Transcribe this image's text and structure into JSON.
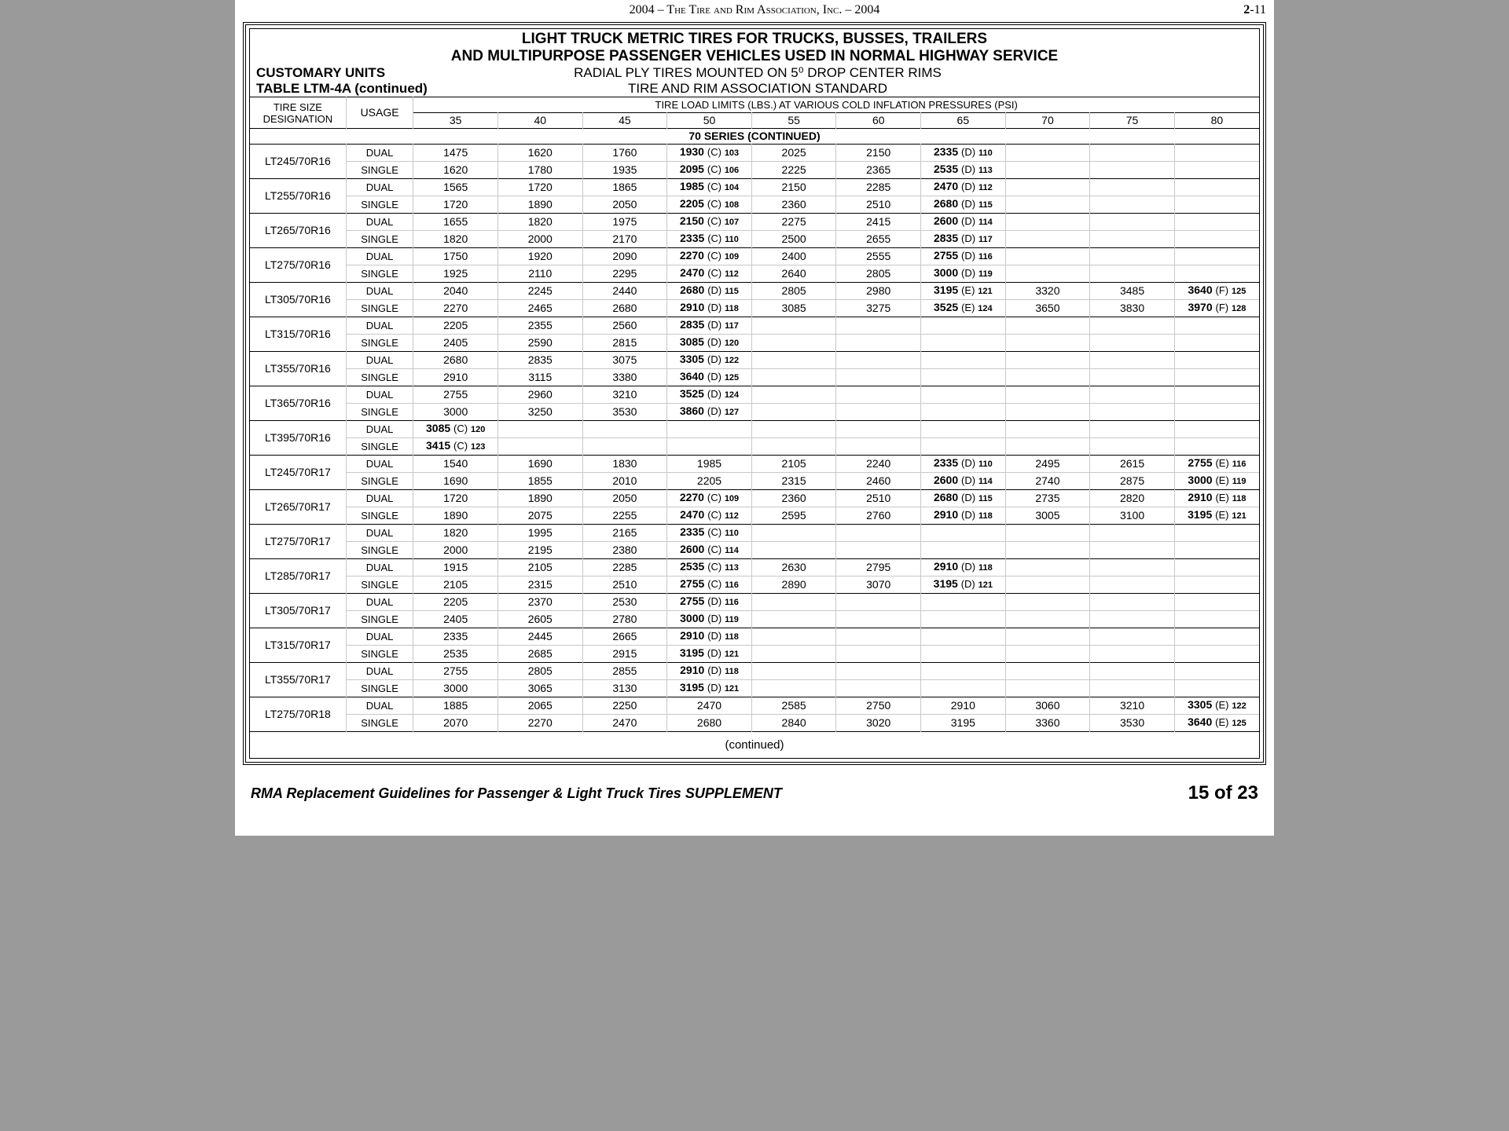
{
  "header": {
    "center": "2004 – The Tire and Rim Association, Inc. – 2004",
    "pagePrefix": "2",
    "pageNum": "-11"
  },
  "title1": "LIGHT TRUCK METRIC TIRES FOR TRUCKS, BUSSES, TRAILERS",
  "title2": "AND MULTIPURPOSE PASSENGER VEHICLES USED IN NORMAL HIGHWAY SERVICE",
  "sub1_left": "CUSTOMARY UNITS",
  "sub1_center": "RADIAL PLY TIRES MOUNTED ON 5⁰ DROP CENTER RIMS",
  "sub2_left": "TABLE LTM-4A (continued)",
  "sub2_center": "TIRE AND RIM ASSOCIATION STANDARD",
  "th_tiresize1": "TIRE SIZE",
  "th_tiresize2": "DESIGNATION",
  "th_usage": "USAGE",
  "th_loadlimits": "TIRE LOAD LIMITS (LBS.) AT VARIOUS COLD INFLATION PRESSURES (PSI)",
  "psi": [
    "35",
    "40",
    "45",
    "50",
    "55",
    "60",
    "65",
    "70",
    "75",
    "80"
  ],
  "section": "70 SERIES (CONTINUED)",
  "rows": [
    {
      "ts": "LT245/70R16",
      "u": "DUAL",
      "c": [
        {
          "v": "1475"
        },
        {
          "v": "1620"
        },
        {
          "v": "1760"
        },
        {
          "b": "1930",
          "a": "(C)",
          "i": "103"
        },
        {
          "v": "2025"
        },
        {
          "v": "2150"
        },
        {
          "b": "2335",
          "a": "(D)",
          "i": "110"
        },
        {},
        {},
        {}
      ]
    },
    {
      "u": "SINGLE",
      "c": [
        {
          "v": "1620"
        },
        {
          "v": "1780"
        },
        {
          "v": "1935"
        },
        {
          "b": "2095",
          "a": "(C)",
          "i": "106"
        },
        {
          "v": "2225"
        },
        {
          "v": "2365"
        },
        {
          "b": "2535",
          "a": "(D)",
          "i": "113"
        },
        {},
        {},
        {}
      ]
    },
    {
      "ts": "LT255/70R16",
      "u": "DUAL",
      "c": [
        {
          "v": "1565"
        },
        {
          "v": "1720"
        },
        {
          "v": "1865"
        },
        {
          "b": "1985",
          "a": "(C)",
          "i": "104"
        },
        {
          "v": "2150"
        },
        {
          "v": "2285"
        },
        {
          "b": "2470",
          "a": "(D)",
          "i": "112"
        },
        {},
        {},
        {}
      ]
    },
    {
      "u": "SINGLE",
      "c": [
        {
          "v": "1720"
        },
        {
          "v": "1890"
        },
        {
          "v": "2050"
        },
        {
          "b": "2205",
          "a": "(C)",
          "i": "108"
        },
        {
          "v": "2360"
        },
        {
          "v": "2510"
        },
        {
          "b": "2680",
          "a": "(D)",
          "i": "115"
        },
        {},
        {},
        {}
      ]
    },
    {
      "ts": "LT265/70R16",
      "u": "DUAL",
      "c": [
        {
          "v": "1655"
        },
        {
          "v": "1820"
        },
        {
          "v": "1975"
        },
        {
          "b": "2150",
          "a": "(C)",
          "i": "107"
        },
        {
          "v": "2275"
        },
        {
          "v": "2415"
        },
        {
          "b": "2600",
          "a": "(D)",
          "i": "114"
        },
        {},
        {},
        {}
      ]
    },
    {
      "u": "SINGLE",
      "c": [
        {
          "v": "1820"
        },
        {
          "v": "2000"
        },
        {
          "v": "2170"
        },
        {
          "b": "2335",
          "a": "(C)",
          "i": "110"
        },
        {
          "v": "2500"
        },
        {
          "v": "2655"
        },
        {
          "b": "2835",
          "a": "(D)",
          "i": "117"
        },
        {},
        {},
        {}
      ]
    },
    {
      "ts": "LT275/70R16",
      "u": "DUAL",
      "c": [
        {
          "v": "1750"
        },
        {
          "v": "1920"
        },
        {
          "v": "2090"
        },
        {
          "b": "2270",
          "a": "(C)",
          "i": "109"
        },
        {
          "v": "2400"
        },
        {
          "v": "2555"
        },
        {
          "b": "2755",
          "a": "(D)",
          "i": "116"
        },
        {},
        {},
        {}
      ]
    },
    {
      "u": "SINGLE",
      "c": [
        {
          "v": "1925"
        },
        {
          "v": "2110"
        },
        {
          "v": "2295"
        },
        {
          "b": "2470",
          "a": "(C)",
          "i": "112"
        },
        {
          "v": "2640"
        },
        {
          "v": "2805"
        },
        {
          "b": "3000",
          "a": "(D)",
          "i": "119"
        },
        {},
        {},
        {}
      ]
    },
    {
      "ts": "LT305/70R16",
      "u": "DUAL",
      "c": [
        {
          "v": "2040"
        },
        {
          "v": "2245"
        },
        {
          "v": "2440"
        },
        {
          "b": "2680",
          "a": "(D)",
          "i": "115"
        },
        {
          "v": "2805"
        },
        {
          "v": "2980"
        },
        {
          "b": "3195",
          "a": "(E)",
          "i": "121"
        },
        {
          "v": "3320"
        },
        {
          "v": "3485"
        },
        {
          "b": "3640",
          "a": "(F)",
          "i": "125"
        }
      ]
    },
    {
      "u": "SINGLE",
      "c": [
        {
          "v": "2270"
        },
        {
          "v": "2465"
        },
        {
          "v": "2680"
        },
        {
          "b": "2910",
          "a": "(D)",
          "i": "118"
        },
        {
          "v": "3085"
        },
        {
          "v": "3275"
        },
        {
          "b": "3525",
          "a": "(E)",
          "i": "124"
        },
        {
          "v": "3650"
        },
        {
          "v": "3830"
        },
        {
          "b": "3970",
          "a": "(F)",
          "i": "128"
        }
      ]
    },
    {
      "ts": "LT315/70R16",
      "u": "DUAL",
      "c": [
        {
          "v": "2205"
        },
        {
          "v": "2355"
        },
        {
          "v": "2560"
        },
        {
          "b": "2835",
          "a": "(D)",
          "i": "117"
        },
        {},
        {},
        {},
        {},
        {},
        {}
      ]
    },
    {
      "u": "SINGLE",
      "c": [
        {
          "v": "2405"
        },
        {
          "v": "2590"
        },
        {
          "v": "2815"
        },
        {
          "b": "3085",
          "a": "(D)",
          "i": "120"
        },
        {},
        {},
        {},
        {},
        {},
        {}
      ]
    },
    {
      "ts": "LT355/70R16",
      "u": "DUAL",
      "c": [
        {
          "v": "2680"
        },
        {
          "v": "2835"
        },
        {
          "v": "3075"
        },
        {
          "b": "3305",
          "a": "(D)",
          "i": "122"
        },
        {},
        {},
        {},
        {},
        {},
        {}
      ]
    },
    {
      "u": "SINGLE",
      "c": [
        {
          "v": "2910"
        },
        {
          "v": "3115"
        },
        {
          "v": "3380"
        },
        {
          "b": "3640",
          "a": "(D)",
          "i": "125"
        },
        {},
        {},
        {},
        {},
        {},
        {}
      ]
    },
    {
      "ts": "LT365/70R16",
      "u": "DUAL",
      "c": [
        {
          "v": "2755"
        },
        {
          "v": "2960"
        },
        {
          "v": "3210"
        },
        {
          "b": "3525",
          "a": "(D)",
          "i": "124"
        },
        {},
        {},
        {},
        {},
        {},
        {}
      ]
    },
    {
      "u": "SINGLE",
      "c": [
        {
          "v": "3000"
        },
        {
          "v": "3250"
        },
        {
          "v": "3530"
        },
        {
          "b": "3860",
          "a": "(D)",
          "i": "127"
        },
        {},
        {},
        {},
        {},
        {},
        {}
      ]
    },
    {
      "ts": "LT395/70R16",
      "u": "DUAL",
      "c": [
        {
          "b": "3085",
          "a": "(C)",
          "i": "120"
        },
        {},
        {},
        {},
        {},
        {},
        {},
        {},
        {},
        {}
      ]
    },
    {
      "u": "SINGLE",
      "c": [
        {
          "b": "3415",
          "a": "(C)",
          "i": "123"
        },
        {},
        {},
        {},
        {},
        {},
        {},
        {},
        {},
        {}
      ]
    },
    {
      "ts": "LT245/70R17",
      "u": "DUAL",
      "c": [
        {
          "v": "1540"
        },
        {
          "v": "1690"
        },
        {
          "v": "1830"
        },
        {
          "v": "1985"
        },
        {
          "v": "2105"
        },
        {
          "v": "2240"
        },
        {
          "b": "2335",
          "a": "(D)",
          "i": "110"
        },
        {
          "v": "2495"
        },
        {
          "v": "2615"
        },
        {
          "b": "2755",
          "a": "(E)",
          "i": "116"
        }
      ]
    },
    {
      "u": "SINGLE",
      "c": [
        {
          "v": "1690"
        },
        {
          "v": "1855"
        },
        {
          "v": "2010"
        },
        {
          "v": "2205"
        },
        {
          "v": "2315"
        },
        {
          "v": "2460"
        },
        {
          "b": "2600",
          "a": "(D)",
          "i": "114"
        },
        {
          "v": "2740"
        },
        {
          "v": "2875"
        },
        {
          "b": "3000",
          "a": "(E)",
          "i": "119"
        }
      ]
    },
    {
      "ts": "LT265/70R17",
      "u": "DUAL",
      "c": [
        {
          "v": "1720"
        },
        {
          "v": "1890"
        },
        {
          "v": "2050"
        },
        {
          "b": "2270",
          "a": "(C)",
          "i": "109"
        },
        {
          "v": "2360"
        },
        {
          "v": "2510"
        },
        {
          "b": "2680",
          "a": "(D)",
          "i": "115"
        },
        {
          "v": "2735"
        },
        {
          "v": "2820"
        },
        {
          "b": "2910",
          "a": "(E)",
          "i": "118"
        }
      ]
    },
    {
      "u": "SINGLE",
      "c": [
        {
          "v": "1890"
        },
        {
          "v": "2075"
        },
        {
          "v": "2255"
        },
        {
          "b": "2470",
          "a": "(C)",
          "i": "112"
        },
        {
          "v": "2595"
        },
        {
          "v": "2760"
        },
        {
          "b": "2910",
          "a": "(D)",
          "i": "118"
        },
        {
          "v": "3005"
        },
        {
          "v": "3100"
        },
        {
          "b": "3195",
          "a": "(E)",
          "i": "121"
        }
      ]
    },
    {
      "ts": "LT275/70R17",
      "u": "DUAL",
      "c": [
        {
          "v": "1820"
        },
        {
          "v": "1995"
        },
        {
          "v": "2165"
        },
        {
          "b": "2335",
          "a": "(C)",
          "i": "110"
        },
        {},
        {},
        {},
        {},
        {},
        {}
      ]
    },
    {
      "u": "SINGLE",
      "c": [
        {
          "v": "2000"
        },
        {
          "v": "2195"
        },
        {
          "v": "2380"
        },
        {
          "b": "2600",
          "a": "(C)",
          "i": "114"
        },
        {},
        {},
        {},
        {},
        {},
        {}
      ]
    },
    {
      "ts": "LT285/70R17",
      "u": "DUAL",
      "c": [
        {
          "v": "1915"
        },
        {
          "v": "2105"
        },
        {
          "v": "2285"
        },
        {
          "b": "2535",
          "a": "(C)",
          "i": "113"
        },
        {
          "v": "2630"
        },
        {
          "v": "2795"
        },
        {
          "b": "2910",
          "a": "(D)",
          "i": "118"
        },
        {},
        {},
        {}
      ]
    },
    {
      "u": "SINGLE",
      "c": [
        {
          "v": "2105"
        },
        {
          "v": "2315"
        },
        {
          "v": "2510"
        },
        {
          "b": "2755",
          "a": "(C)",
          "i": "116"
        },
        {
          "v": "2890"
        },
        {
          "v": "3070"
        },
        {
          "b": "3195",
          "a": "(D)",
          "i": "121"
        },
        {},
        {},
        {}
      ]
    },
    {
      "ts": "LT305/70R17",
      "u": "DUAL",
      "c": [
        {
          "v": "2205"
        },
        {
          "v": "2370"
        },
        {
          "v": "2530"
        },
        {
          "b": "2755",
          "a": "(D)",
          "i": "116"
        },
        {},
        {},
        {},
        {},
        {},
        {}
      ]
    },
    {
      "u": "SINGLE",
      "c": [
        {
          "v": "2405"
        },
        {
          "v": "2605"
        },
        {
          "v": "2780"
        },
        {
          "b": "3000",
          "a": "(D)",
          "i": "119"
        },
        {},
        {},
        {},
        {},
        {},
        {}
      ]
    },
    {
      "ts": "LT315/70R17",
      "u": "DUAL",
      "c": [
        {
          "v": "2335"
        },
        {
          "v": "2445"
        },
        {
          "v": "2665"
        },
        {
          "b": "2910",
          "a": "(D)",
          "i": "118"
        },
        {},
        {},
        {},
        {},
        {},
        {}
      ]
    },
    {
      "u": "SINGLE",
      "c": [
        {
          "v": "2535"
        },
        {
          "v": "2685"
        },
        {
          "v": "2915"
        },
        {
          "b": "3195",
          "a": "(D)",
          "i": "121"
        },
        {},
        {},
        {},
        {},
        {},
        {}
      ]
    },
    {
      "ts": "LT355/70R17",
      "u": "DUAL",
      "c": [
        {
          "v": "2755"
        },
        {
          "v": "2805"
        },
        {
          "v": "2855"
        },
        {
          "b": "2910",
          "a": "(D)",
          "i": "118"
        },
        {},
        {},
        {},
        {},
        {},
        {}
      ]
    },
    {
      "u": "SINGLE",
      "c": [
        {
          "v": "3000"
        },
        {
          "v": "3065"
        },
        {
          "v": "3130"
        },
        {
          "b": "3195",
          "a": "(D)",
          "i": "121"
        },
        {},
        {},
        {},
        {},
        {},
        {}
      ]
    },
    {
      "ts": "LT275/70R18",
      "u": "DUAL",
      "c": [
        {
          "v": "1885"
        },
        {
          "v": "2065"
        },
        {
          "v": "2250"
        },
        {
          "v": "2470"
        },
        {
          "v": "2585"
        },
        {
          "v": "2750"
        },
        {
          "v": "2910"
        },
        {
          "v": "3060"
        },
        {
          "v": "3210"
        },
        {
          "b": "3305",
          "a": "(E)",
          "i": "122"
        }
      ]
    },
    {
      "u": "SINGLE",
      "c": [
        {
          "v": "2070"
        },
        {
          "v": "2270"
        },
        {
          "v": "2470"
        },
        {
          "v": "2680"
        },
        {
          "v": "2840"
        },
        {
          "v": "3020"
        },
        {
          "v": "3195"
        },
        {
          "v": "3360"
        },
        {
          "v": "3530"
        },
        {
          "b": "3640",
          "a": "(E)",
          "i": "125"
        }
      ]
    }
  ],
  "continued": "(continued)",
  "footer_left": "RMA Replacement Guidelines for Passenger & Light Truck Tires SUPPLEMENT",
  "footer_right": "15 of 23"
}
